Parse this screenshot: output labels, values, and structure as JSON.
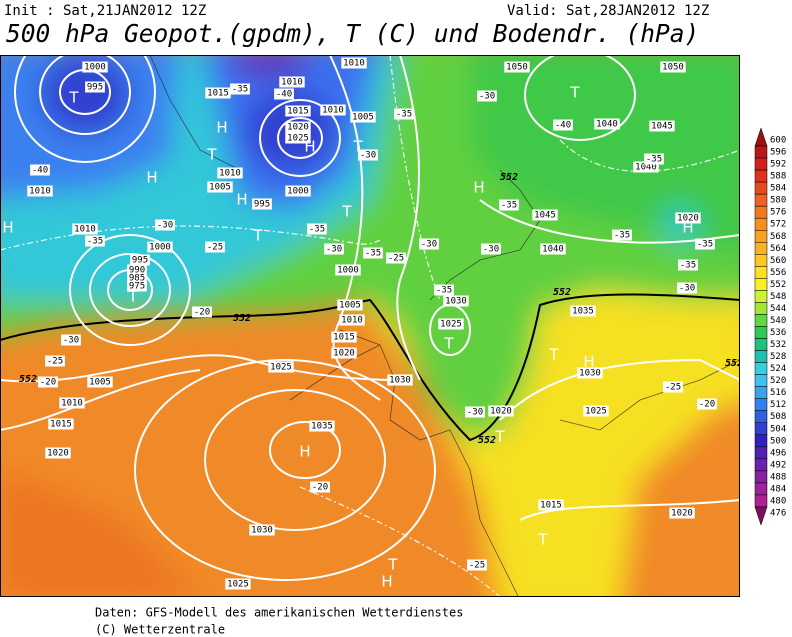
{
  "header": {
    "init": "Init : Sat,21JAN2012 12Z",
    "valid": "Valid: Sat,28JAN2012 12Z",
    "title": "500 hPa Geopot.(gpdm), T (C) und Bodendr. (hPa)"
  },
  "map": {
    "isobar_labels": [
      "1000",
      "995",
      "1010",
      "1015",
      "1015",
      "1020",
      "1025",
      "1010",
      "1005",
      "1010",
      "1010",
      "1005",
      "1000",
      "995",
      "1010",
      "1010",
      "995",
      "1000",
      "990",
      "985",
      "975",
      "1000",
      "1005",
      "1010",
      "1015",
      "1020",
      "1025",
      "1030",
      "1005",
      "1010",
      "1015",
      "1020",
      "1035",
      "1030",
      "1025",
      "1050",
      "1050",
      "1045",
      "1040",
      "1040",
      "1045",
      "1040",
      "1030",
      "1025",
      "1035",
      "1030",
      "1025",
      "1020",
      "1015",
      "1020",
      "1020"
    ],
    "temperature_labels": [
      "-40",
      "-35",
      "-30",
      "-25",
      "-20",
      "-30",
      "-25",
      "-20",
      "-35",
      "-40",
      "-35",
      "-30",
      "-35",
      "-25",
      "-30",
      "-35",
      "-30",
      "-35",
      "-30",
      "-30",
      "-35",
      "-30",
      "-20",
      "-25",
      "-40",
      "-35",
      "-35",
      "-35",
      "-35",
      "-30",
      "-25",
      "-20"
    ],
    "centers": [
      "T",
      "H",
      "T",
      "H",
      "H",
      "T",
      "T",
      "H",
      "T",
      "T",
      "H",
      "H",
      "T",
      "H",
      "H",
      "T",
      "T",
      "H",
      "T",
      "T",
      "H",
      "T"
    ],
    "contour_labels": [
      "552",
      "552",
      "552",
      "552",
      "552",
      "552"
    ]
  },
  "colorbar": {
    "values": [
      600,
      596,
      592,
      588,
      584,
      580,
      576,
      572,
      568,
      564,
      560,
      556,
      552,
      548,
      544,
      540,
      536,
      532,
      528,
      524,
      520,
      516,
      512,
      508,
      504,
      500,
      496,
      492,
      488,
      484,
      480,
      476
    ],
    "colors": [
      "#a01010",
      "#b81818",
      "#d02020",
      "#e03020",
      "#e84a20",
      "#f06020",
      "#f07a20",
      "#f59020",
      "#f8a020",
      "#fbb020",
      "#fcc820",
      "#fde020",
      "#f8f020",
      "#d0f030",
      "#a0e830",
      "#60d840",
      "#30c850",
      "#20c080",
      "#20c0b0",
      "#30d0e0",
      "#40c0f0",
      "#40a0f0",
      "#3080f0",
      "#3060e0",
      "#3040d0",
      "#3020c0",
      "#5020b0",
      "#7020b0",
      "#8a20a0",
      "#a0209a",
      "#b02090",
      "#7a1060"
    ]
  },
  "footer": {
    "source": "Daten: GFS-Modell des amerikanischen Wetterdienstes",
    "copyright": "(C) Wetterzentrale"
  }
}
